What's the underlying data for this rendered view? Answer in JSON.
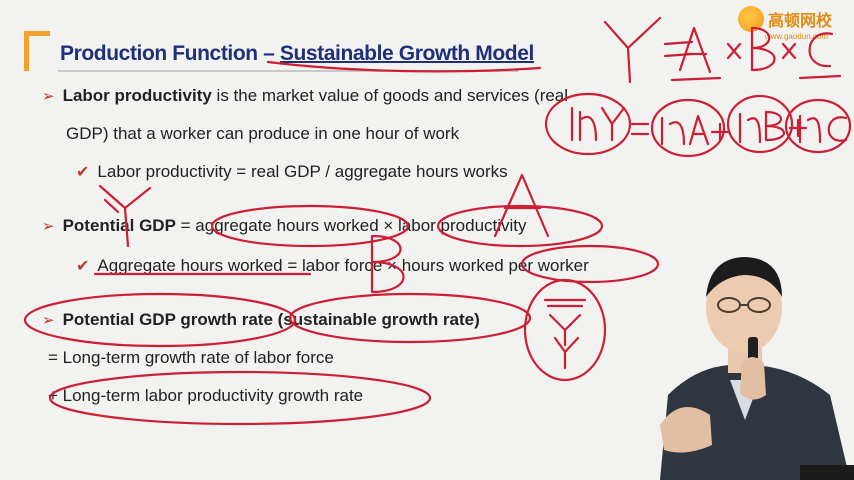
{
  "logo": {
    "text": "高顿网校",
    "sub": "www.gaodun.com"
  },
  "title": {
    "part1": "Production Function – ",
    "part2": "Sustainable Growth Model"
  },
  "bullets": {
    "labor_prod": {
      "bold": "Labor productivity",
      "rest": " is the market value of goods and services (real",
      "cont": "GDP) that a worker can produce in one hour of work"
    },
    "labor_prod_formula": "Labor productivity = real GDP / aggregate hours works",
    "potential_gdp": {
      "bold": "Potential GDP",
      "rest": " = aggregate hours worked × labor productivity"
    },
    "agg_hours_formula": "Aggregate hours worked = labor force × hours worked per worker",
    "growth_rate": {
      "bold": "Potential GDP growth rate",
      "rest": " (sustainable growth rate)"
    },
    "growth_line1": "= Long-term growth rate of labor force",
    "growth_line2": "+ Long-term labor productivity growth rate"
  },
  "colors": {
    "title": "#1f2f7a",
    "bullet": "#c0392b",
    "ink": "#cc1f36",
    "bracket": "#f0a22a"
  },
  "icons": {
    "bullet": "arrow-right-icon",
    "check": "check-icon",
    "logo": "gaodun-logo-icon"
  }
}
